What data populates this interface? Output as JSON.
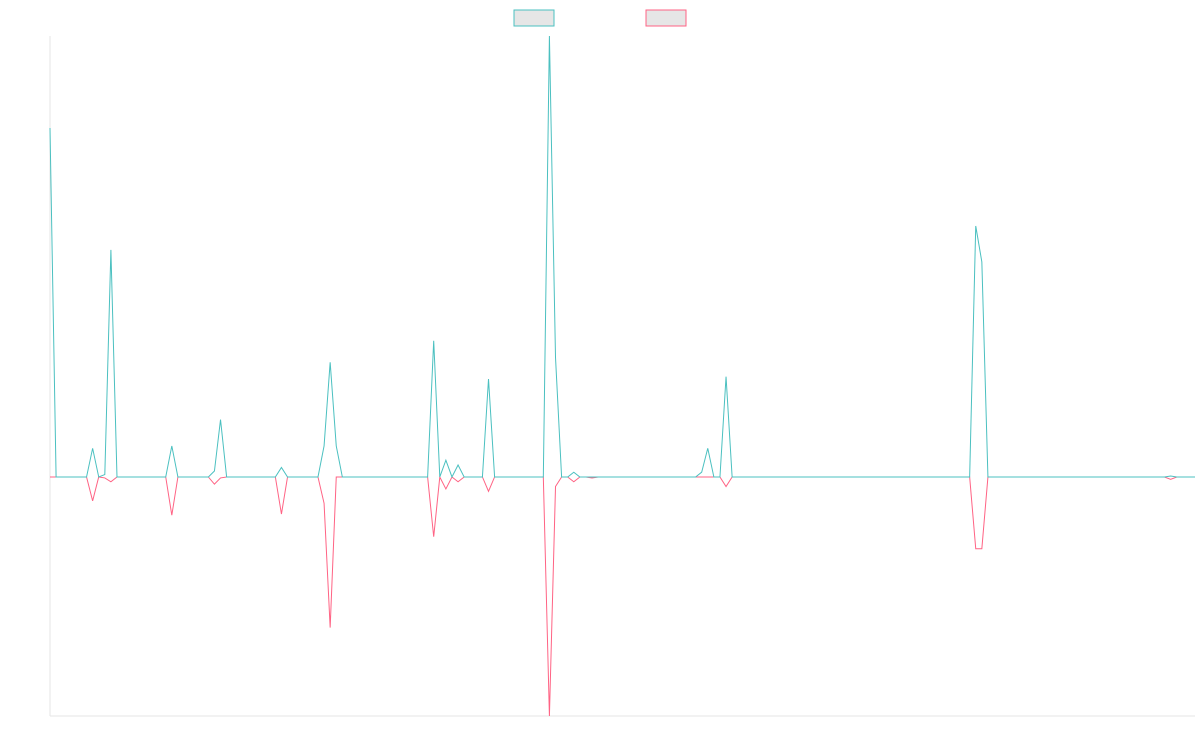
{
  "chart_data": {
    "type": "line",
    "x": [
      0,
      1,
      6,
      7,
      8,
      9,
      10,
      11,
      19,
      20,
      21,
      26,
      27,
      28,
      29,
      37,
      38,
      39,
      44,
      45,
      46,
      47,
      48,
      62,
      63,
      64,
      65,
      66,
      67,
      68,
      71,
      72,
      73,
      81,
      82,
      83,
      84,
      85,
      86,
      87,
      88,
      89,
      90,
      106,
      107,
      108,
      109,
      110,
      111,
      112,
      151,
      152,
      153,
      154,
      183,
      184,
      185,
      188
    ],
    "series": [
      {
        "color": "#4bc0c0",
        "values": [
          146,
          0,
          0,
          12,
          0,
          1,
          95,
          0,
          0,
          13,
          0,
          0,
          2.5,
          24,
          0,
          0,
          4,
          0,
          0,
          13,
          48,
          13,
          0,
          0,
          57,
          0,
          7,
          0,
          5,
          0,
          0,
          41,
          0,
          0,
          184.5,
          50,
          0,
          0,
          2,
          0,
          0,
          0,
          0,
          0,
          2,
          12,
          0,
          0,
          42,
          0,
          0,
          105,
          90,
          0,
          0,
          0.4,
          0,
          0
        ]
      },
      {
        "color": "#ff6384",
        "values": [
          0,
          0,
          0,
          -10,
          0,
          -0.4,
          -2,
          0,
          0,
          -16,
          0,
          0,
          -3,
          -0.4,
          0,
          0,
          -15.5,
          0,
          0,
          -11,
          -63,
          0,
          0,
          0,
          -25,
          0,
          -5,
          0,
          -2,
          0,
          0,
          -6,
          0,
          0,
          -100,
          -4,
          0,
          0,
          -2,
          0,
          0,
          -0.4,
          0,
          0,
          0,
          0,
          0,
          0,
          -4,
          0,
          0,
          -30,
          -30,
          0,
          0,
          -1,
          0,
          0
        ]
      }
    ],
    "xlim": [
      0,
      188
    ],
    "ylim": [
      -100,
      184.5
    ],
    "legend": "top"
  }
}
